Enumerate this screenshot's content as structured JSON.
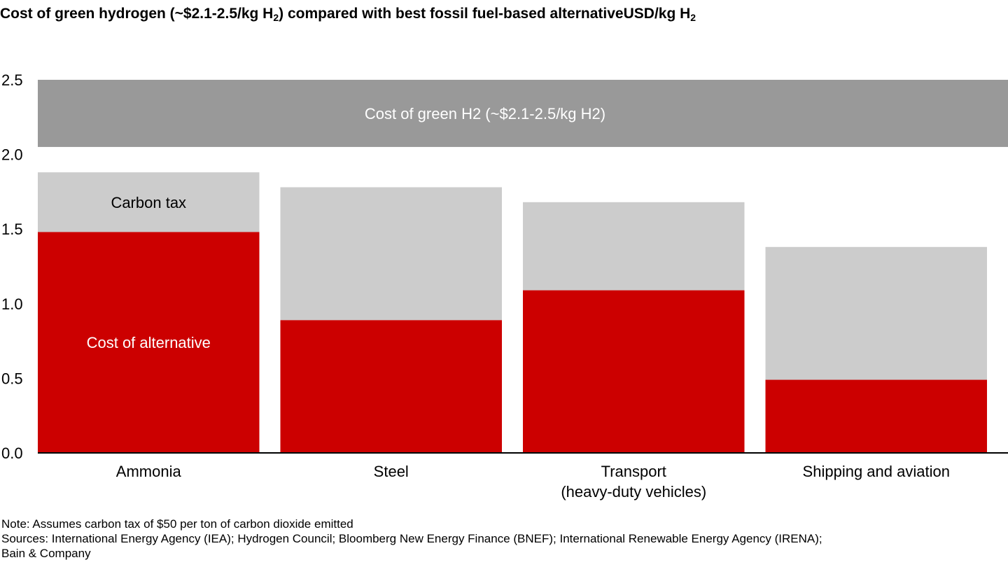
{
  "title": {
    "part1": "Cost of green hydrogen (~$2.1-2.5/kg H",
    "sub1": "2",
    "part2": ") compared with best fossil fuel-based alternative",
    "unit": "USD/kg H",
    "sub2": "2"
  },
  "chart_data": {
    "type": "bar",
    "stacked": true,
    "categories": [
      [
        "Ammonia"
      ],
      [
        "Steel"
      ],
      [
        "Transport",
        "(heavy-duty vehicles)"
      ],
      [
        "Shipping and aviation"
      ]
    ],
    "series": [
      {
        "name": "Cost of alternative",
        "color": "#cc0000",
        "values": [
          1.48,
          0.89,
          1.09,
          0.49
        ]
      },
      {
        "name": "Carbon tax",
        "color": "#cccccc",
        "values": [
          0.4,
          0.89,
          0.59,
          0.89
        ]
      }
    ],
    "band": {
      "label": "Cost of green H2 (~$2.1-2.5/kg H2)",
      "from": 2.05,
      "to": 2.5,
      "color": "#999999"
    },
    "yticks": [
      "0.0",
      "0.5",
      "1.0",
      "1.5",
      "2.0",
      "2.5"
    ],
    "ylim": [
      0,
      2.5
    ]
  },
  "notes": {
    "note": "Note: Assumes carbon tax of $50 per ton of carbon dioxide emitted",
    "sources_line1": "Sources: International Energy Agency (IEA); Hydrogen Council; Bloomberg New Energy Finance (BNEF); International Renewable Energy Agency (IRENA);",
    "sources_line2": "Bain & Company"
  }
}
